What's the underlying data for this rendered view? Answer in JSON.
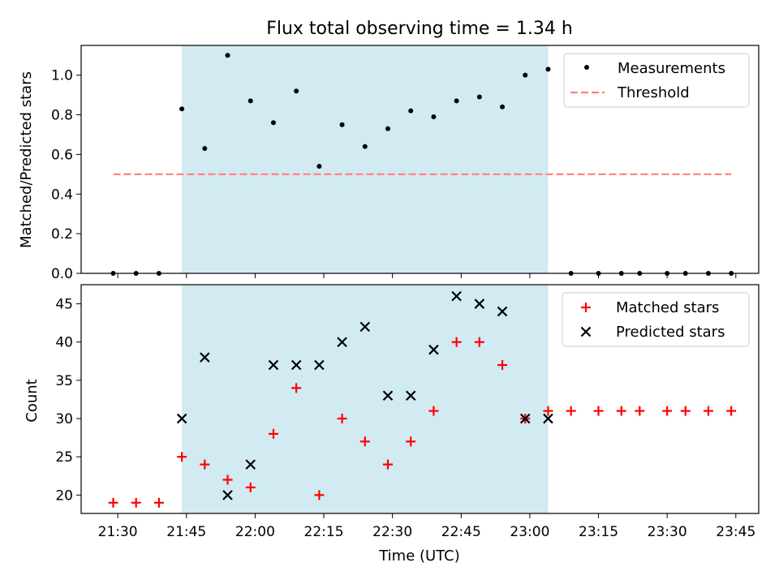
{
  "figure": {
    "title": "Flux total observing time = 1.34 h"
  },
  "chart_data": [
    {
      "type": "scatter",
      "panel": "top",
      "title": "Flux total observing time = 1.34 h",
      "xlabel": "",
      "ylabel": "Matched/Predicted stars",
      "ylim": [
        0.0,
        1.15
      ],
      "yticks": [
        0.0,
        0.2,
        0.4,
        0.6,
        0.8,
        1.0
      ],
      "ytick_labels": [
        "0.0",
        "0.2",
        "0.4",
        "0.6",
        "0.8",
        "1.0"
      ],
      "grid": false,
      "legend_position": "top-right",
      "shaded_region": {
        "start": "21:44",
        "end": "23:04",
        "color": "#add8e6"
      },
      "x": [
        "21:29",
        "21:34",
        "21:39",
        "21:44",
        "21:49",
        "21:54",
        "21:59",
        "22:04",
        "22:09",
        "22:14",
        "22:19",
        "22:24",
        "22:29",
        "22:34",
        "22:39",
        "22:44",
        "22:49",
        "22:54",
        "22:59",
        "23:04",
        "23:09",
        "23:15",
        "23:20",
        "23:24",
        "23:30",
        "23:34",
        "23:39",
        "23:44"
      ],
      "series": [
        {
          "name": "Measurements",
          "marker": "dot",
          "color": "#000000",
          "values": [
            0,
            0,
            0,
            0.83,
            0.63,
            1.1,
            0.87,
            0.76,
            0.92,
            0.54,
            0.75,
            0.64,
            0.73,
            0.82,
            0.79,
            0.87,
            0.89,
            0.84,
            1.0,
            1.03,
            0,
            0,
            0,
            0,
            0,
            0,
            0,
            0
          ]
        },
        {
          "name": "Threshold",
          "style": "dashed",
          "color": "#ff7f7f",
          "x": [
            "21:29",
            "23:44"
          ],
          "values": [
            0.5,
            0.5
          ]
        }
      ]
    },
    {
      "type": "scatter",
      "panel": "bottom",
      "xlabel": "Time (UTC)",
      "ylabel": "Count",
      "ylim": [
        17.6,
        47.5
      ],
      "yticks": [
        20,
        25,
        30,
        35,
        40,
        45
      ],
      "ytick_labels": [
        "20",
        "25",
        "30",
        "35",
        "40",
        "45"
      ],
      "xlim": [
        "21:22",
        "23:50"
      ],
      "xticks": [
        "21:30",
        "21:45",
        "22:00",
        "22:15",
        "22:30",
        "22:45",
        "23:00",
        "23:15",
        "23:30",
        "23:45"
      ],
      "xtick_labels": [
        "21:30",
        "21:45",
        "22:00",
        "22:15",
        "22:30",
        "22:45",
        "23:00",
        "23:15",
        "23:30",
        "23:45"
      ],
      "grid": false,
      "legend_position": "top-right",
      "shaded_region": {
        "start": "21:44",
        "end": "23:04",
        "color": "#add8e6"
      },
      "series": [
        {
          "name": "Matched stars",
          "marker": "plus",
          "color": "#ff0000",
          "x": [
            "21:29",
            "21:34",
            "21:39",
            "21:44",
            "21:49",
            "21:54",
            "21:59",
            "22:04",
            "22:09",
            "22:14",
            "22:19",
            "22:24",
            "22:29",
            "22:34",
            "22:39",
            "22:44",
            "22:49",
            "22:54",
            "22:59",
            "23:04",
            "23:09",
            "23:15",
            "23:20",
            "23:24",
            "23:30",
            "23:34",
            "23:39",
            "23:44"
          ],
          "values": [
            19,
            19,
            19,
            25,
            24,
            22,
            21,
            28,
            34,
            20,
            30,
            27,
            24,
            27,
            31,
            40,
            40,
            37,
            30,
            31,
            31,
            31,
            31,
            31,
            31,
            31,
            31,
            31
          ]
        },
        {
          "name": "Predicted stars",
          "marker": "x",
          "color": "#000000",
          "x": [
            "21:44",
            "21:49",
            "21:54",
            "21:59",
            "22:04",
            "22:09",
            "22:14",
            "22:19",
            "22:24",
            "22:29",
            "22:34",
            "22:39",
            "22:44",
            "22:49",
            "22:54",
            "22:59",
            "23:04"
          ],
          "values": [
            30,
            38,
            20,
            24,
            37,
            37,
            37,
            40,
            42,
            33,
            33,
            39,
            46,
            45,
            44,
            30,
            30
          ]
        }
      ]
    }
  ]
}
